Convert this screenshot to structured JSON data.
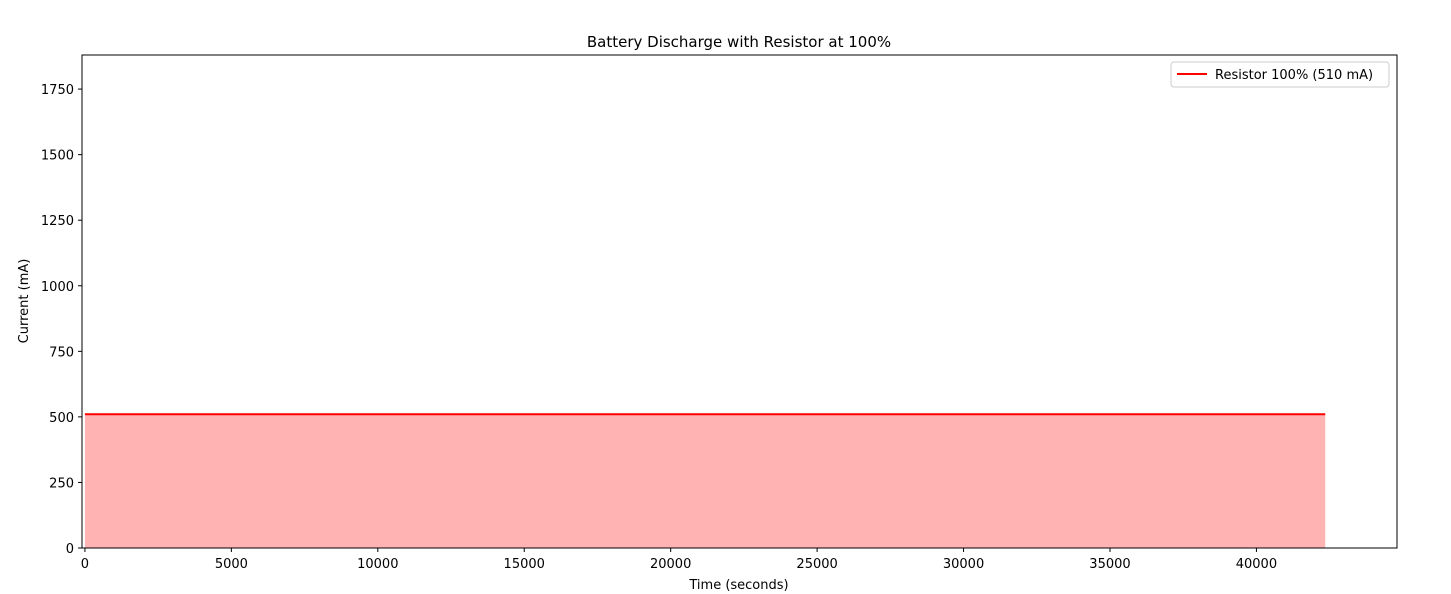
{
  "chart_data": {
    "type": "area",
    "title": "Battery Discharge with Resistor at 100%",
    "xlabel": "Time (seconds)",
    "ylabel": "Current (mA)",
    "xlim": [
      -100,
      44800
    ],
    "ylim": [
      0,
      1880
    ],
    "xticks": [
      0,
      5000,
      10000,
      15000,
      20000,
      25000,
      30000,
      35000,
      40000
    ],
    "yticks": [
      0,
      250,
      500,
      750,
      1000,
      1250,
      1500,
      1750
    ],
    "grid": false,
    "legend_position": "top-right",
    "series": [
      {
        "name": "Resistor 100% (510 mA)",
        "color": "#ff0000",
        "fill_color": "#ffb3b3",
        "x": [
          0,
          42350
        ],
        "y": [
          510,
          510
        ]
      }
    ]
  }
}
